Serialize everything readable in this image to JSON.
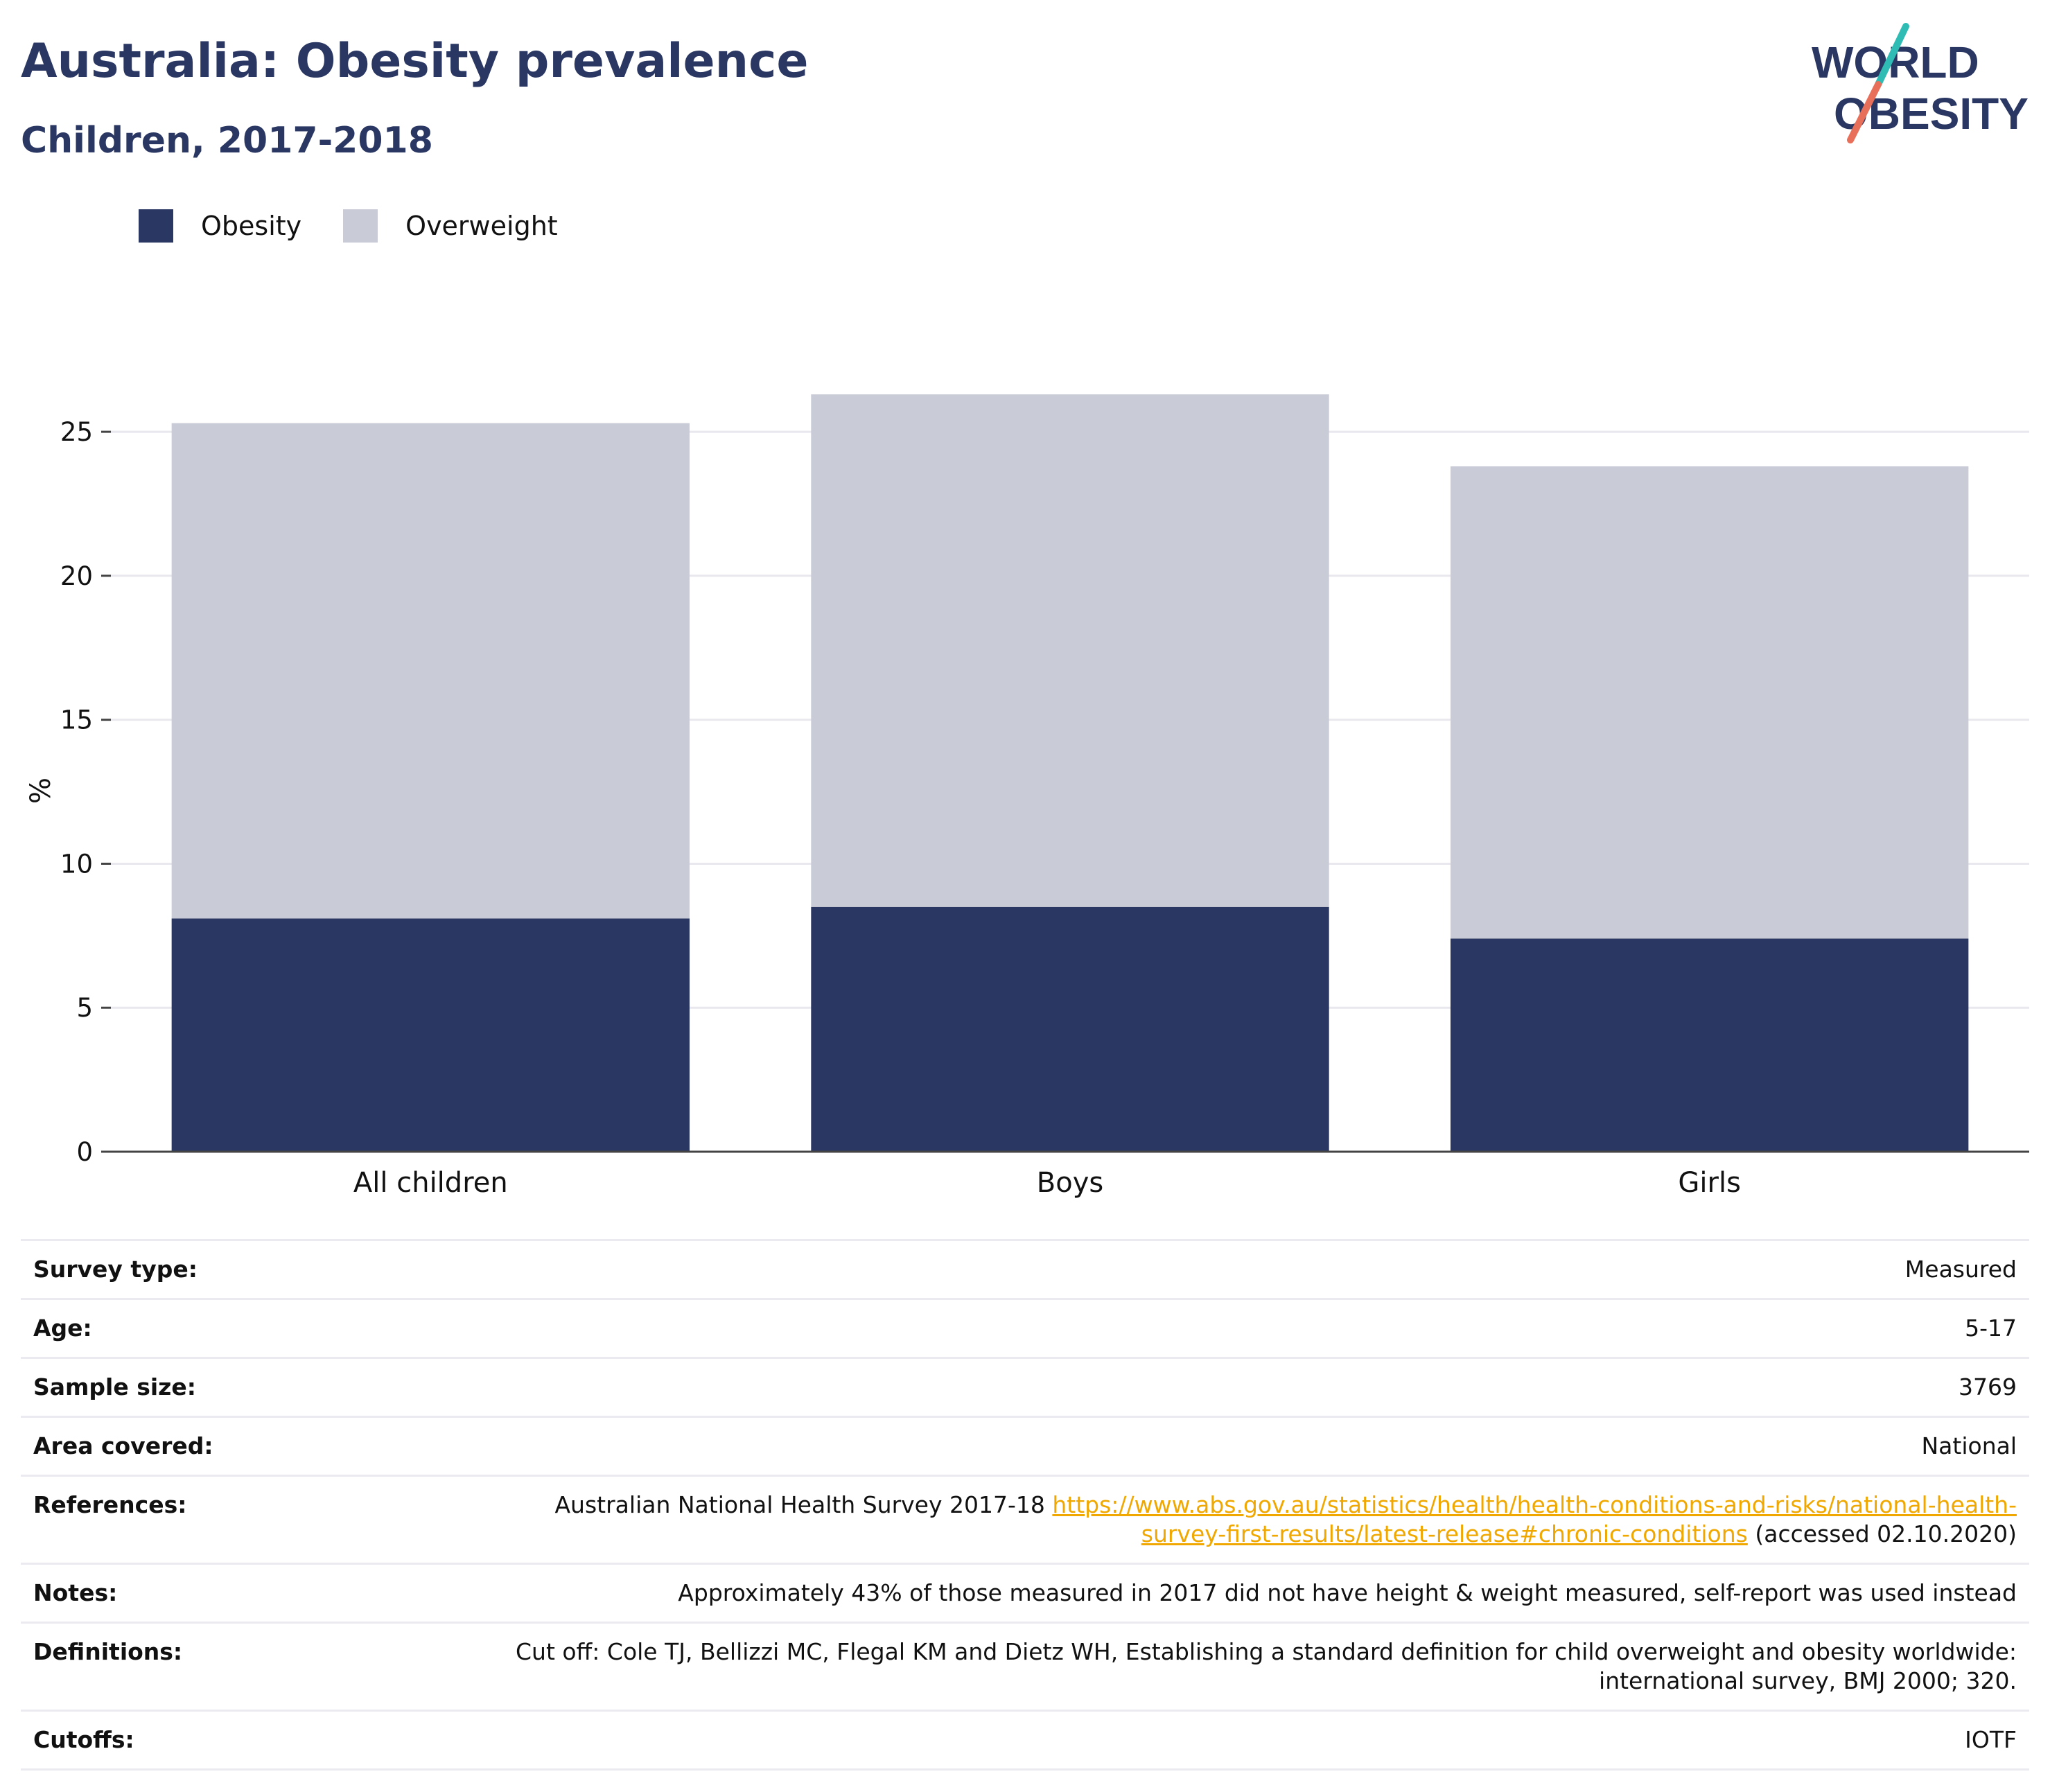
{
  "header": {
    "title": "Australia: Obesity prevalence",
    "subtitle": "Children, 2017-2018"
  },
  "logo": {
    "line1": "WORLD",
    "line2": "OBESITY"
  },
  "colors": {
    "title": "#2a3763",
    "obesity": "#2a3763",
    "overweight": "#c9cbd6",
    "link": "#f0a800",
    "logo_teal": "#2ebcb4",
    "logo_coral": "#e8705a"
  },
  "legend": {
    "obesity_label": "Obesity",
    "overweight_label": "Overweight"
  },
  "chart_data": {
    "type": "bar",
    "stacked": true,
    "categories": [
      "All children",
      "Boys",
      "Girls"
    ],
    "series": [
      {
        "name": "Obesity",
        "values": [
          8.1,
          8.5,
          7.4
        ]
      },
      {
        "name": "Overweight",
        "values": [
          17.2,
          17.8,
          16.4
        ]
      }
    ],
    "ylabel": "%",
    "ylim": [
      0,
      27
    ],
    "yticks": [
      0,
      5,
      10,
      15,
      20,
      25
    ],
    "grid": true,
    "legend_position": "top-left"
  },
  "info": {
    "survey_type": {
      "label": "Survey type:",
      "value": "Measured"
    },
    "age": {
      "label": "Age:",
      "value": "5-17"
    },
    "sample_size": {
      "label": "Sample size:",
      "value": "3769"
    },
    "area_covered": {
      "label": "Area covered:",
      "value": "National"
    },
    "references": {
      "label": "References:",
      "prefix": "Australian National Health Survey 2017-18",
      "link": "https://www.abs.gov.au/statistics/health/health-conditions-and-risks/national-health-survey-first-results/latest-release#chronic-conditions",
      "suffix": "(accessed 02.10.2020)"
    },
    "notes": {
      "label": "Notes:",
      "value": "Approximately 43% of those measured in 2017 did not have height & weight measured, self-report was used instead"
    },
    "definitions": {
      "label": "Definitions:",
      "value": "Cut off: Cole TJ, Bellizzi MC, Flegal KM and Dietz WH, Establishing a standard definition for child overweight and obesity worldwide: international survey, BMJ 2000; 320."
    },
    "cutoffs": {
      "label": "Cutoffs:",
      "value": "IOTF"
    }
  }
}
